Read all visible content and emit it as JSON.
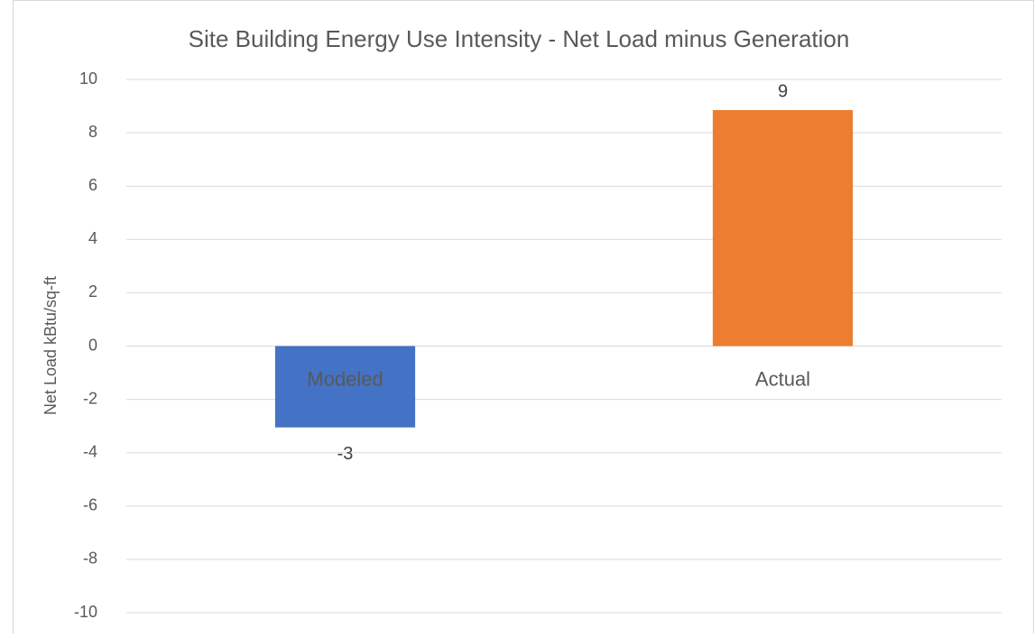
{
  "chart_data": {
    "type": "bar",
    "title": "Site Building Energy Use Intensity - Net Load minus Generation",
    "y_label": "Net Load kBtu/sq-ft",
    "categories": [
      "Modeled",
      "Actual"
    ],
    "values": [
      -3.05,
      8.85
    ],
    "value_labels": [
      "-3",
      "9"
    ],
    "colors": [
      "#4472c4",
      "#ed7d31"
    ],
    "ylim": [
      -10,
      10
    ],
    "yticks": [
      -10,
      -8,
      -6,
      -4,
      -2,
      0,
      2,
      4,
      6,
      8,
      10
    ],
    "grid": true
  }
}
